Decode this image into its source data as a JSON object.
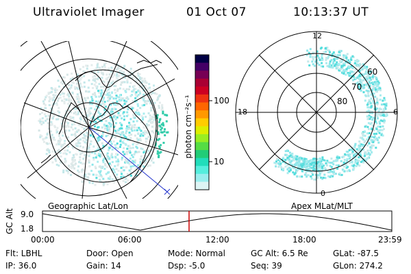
{
  "header": {
    "instrument": "Ultraviolet Imager",
    "date": "01 Oct 07",
    "time": "10:13:37 UT"
  },
  "geo_map": {
    "label": "Geographic Lat/Lon"
  },
  "polar_plot": {
    "label": "Apex MLat/MLT",
    "mlt_labels": [
      "12",
      "18",
      "6",
      "0"
    ],
    "mlat_labels": [
      "60",
      "70",
      "80"
    ]
  },
  "colorbar": {
    "unit_label": "photon cm⁻²s⁻¹",
    "ticks": [
      "100",
      "10"
    ],
    "colors": [
      "#000044",
      "#440066",
      "#770055",
      "#aa0033",
      "#cc0022",
      "#ee3311",
      "#ff6600",
      "#ff9900",
      "#ffcc00",
      "#ddee00",
      "#99ee22",
      "#55dd44",
      "#22cc77",
      "#22ddbb",
      "#55eedd",
      "#99eeee",
      "#ddf4f4"
    ]
  },
  "timeline": {
    "axis_label": "GC Alt",
    "y_ticks": [
      "9.0",
      "1.8"
    ],
    "x_ticks": [
      "00:00",
      "06:00",
      "12:00",
      "18:00",
      "23:59"
    ],
    "marker_color": "#cc0000"
  },
  "status": {
    "flt": "Flt: LBHL",
    "ip": "IP: 36.0",
    "door": "Door: Open",
    "gain": "Gain: 14",
    "mode": "Mode: Normal",
    "dsp": "Dsp:    -5.0",
    "gcalt": "GC Alt: 6.5 Re",
    "seq": "Seq: 39",
    "glat": "GLat: -87.5",
    "glon": "GLon: 274.2"
  }
}
